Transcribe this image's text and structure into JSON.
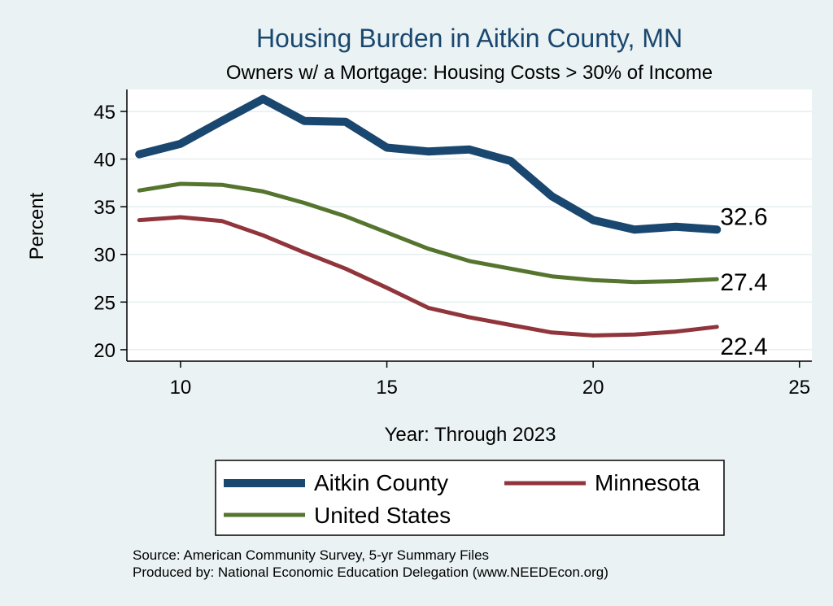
{
  "chart_data": {
    "type": "line",
    "title": "Housing Burden in Aitkin County, MN",
    "subtitle": "Owners w/ a Mortgage: Housing Costs > 30% of Income",
    "xlabel": "Year: Through 2023",
    "ylabel": "Percent",
    "xlim": [
      8.7,
      25.3
    ],
    "ylim": [
      18.8,
      47.3
    ],
    "x_ticks": [
      10,
      15,
      20,
      25
    ],
    "y_ticks": [
      20,
      25,
      30,
      35,
      40,
      45
    ],
    "grid": true,
    "x": [
      9,
      10,
      11,
      12,
      13,
      14,
      15,
      16,
      17,
      18,
      19,
      20,
      21,
      22,
      23
    ],
    "series": [
      {
        "name": "Aitkin County",
        "color": "#1a476f",
        "values": [
          40.5,
          41.6,
          44.0,
          46.3,
          44.0,
          43.9,
          41.2,
          40.8,
          41.0,
          39.8,
          36.1,
          33.6,
          32.6,
          32.9,
          32.6
        ],
        "end_label": "32.6"
      },
      {
        "name": "Minnesota",
        "color": "#90353b",
        "values": [
          33.6,
          33.9,
          33.5,
          32.0,
          30.2,
          28.5,
          26.5,
          24.4,
          23.4,
          22.6,
          21.8,
          21.5,
          21.6,
          21.9,
          22.4
        ],
        "end_label": "22.4"
      },
      {
        "name": "United States",
        "color": "#55752f",
        "values": [
          36.7,
          37.4,
          37.3,
          36.6,
          35.4,
          34.0,
          32.3,
          30.6,
          29.3,
          28.5,
          27.7,
          27.3,
          27.1,
          27.2,
          27.4
        ],
        "end_label": "27.4"
      }
    ],
    "legend": {
      "position": "bottom",
      "entries": [
        "Aitkin County",
        "Minnesota",
        "United States"
      ]
    }
  },
  "footer": {
    "source": "Source: American Community Survey, 5-yr Summary Files",
    "produced": "Produced by: National Economic Education Delegation (www.NEEDEcon.org)"
  }
}
